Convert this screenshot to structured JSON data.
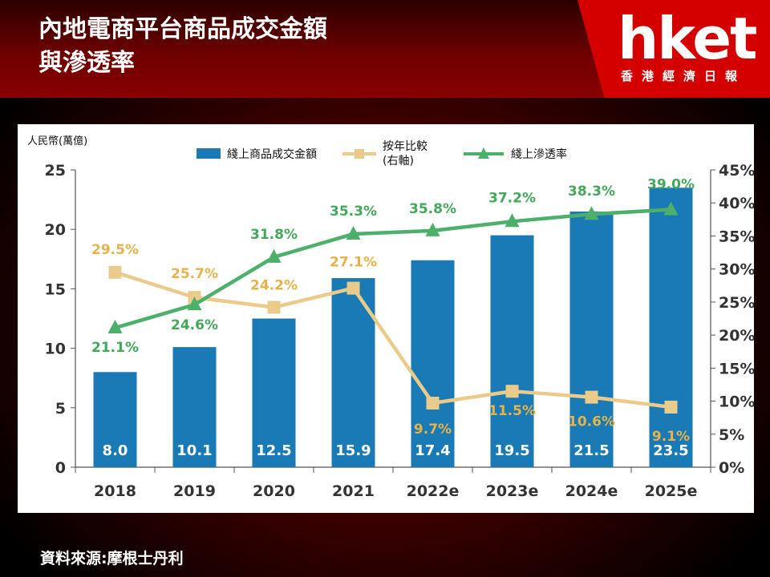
{
  "header": {
    "title_line1": "內地電商平台商品成交金額",
    "title_line2": "與滲透率",
    "logo_text": "hket",
    "logo_subtitle": "香港經濟日報"
  },
  "colors": {
    "bar": "#1a7ab5",
    "yoy_line": "#ebcb8b",
    "yoy_label": "#e6b24a",
    "penetration_line": "#4caf6a",
    "penetration_label": "#43a85a",
    "logo_red": "#d40000"
  },
  "chart_data": {
    "type": "bar",
    "categories": [
      "2018",
      "2019",
      "2020",
      "2021",
      "2022e",
      "2023e",
      "2024e",
      "2025e"
    ],
    "left_axis_unit": "人民幣(萬億)",
    "ylim": [
      0,
      25
    ],
    "y_ticks": [
      "0",
      "5",
      "10",
      "15",
      "20",
      "25"
    ],
    "y2lim": [
      0,
      45
    ],
    "y2_ticks": [
      "0%",
      "5%",
      "10%",
      "15%",
      "20%",
      "25%",
      "30%",
      "35%",
      "40%",
      "45%"
    ],
    "grid": false,
    "legend_position": "top",
    "series": [
      {
        "name": "綫上商品成交金額",
        "type": "bar",
        "axis": "left",
        "values": [
          8.0,
          10.1,
          12.5,
          15.9,
          17.4,
          19.5,
          21.5,
          23.5
        ],
        "labels": [
          "8.0",
          "10.1",
          "12.5",
          "15.9",
          "17.4",
          "19.5",
          "21.5",
          "23.5"
        ]
      },
      {
        "name": "按年比較\n(右軸)",
        "type": "line",
        "axis": "right",
        "values": [
          29.5,
          25.7,
          24.2,
          27.1,
          9.7,
          11.5,
          10.6,
          9.1
        ],
        "labels": [
          "29.5%",
          "25.7%",
          "24.2%",
          "27.1%",
          "9.7%",
          "11.5%",
          "10.6%",
          "9.1%"
        ]
      },
      {
        "name": "綫上滲透率",
        "type": "line",
        "axis": "right",
        "values": [
          21.1,
          24.6,
          31.8,
          35.3,
          35.8,
          37.2,
          38.3,
          39.0
        ],
        "labels": [
          "21.1%",
          "24.6%",
          "31.8%",
          "35.3%",
          "35.8%",
          "37.2%",
          "38.3%",
          "39.0%"
        ]
      }
    ]
  },
  "footer": {
    "source": "資料來源:摩根士丹利"
  }
}
